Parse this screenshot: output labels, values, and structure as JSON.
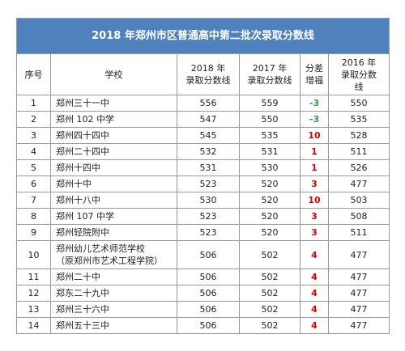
{
  "table": {
    "title": "2018 年郑州市区普通高中第二批次录取分数线",
    "headers": [
      "序号",
      "学校",
      "2018 年\n录取分数线",
      "2017 年\n录取分数线",
      "分差\n增福",
      "2016 年\n录取分数\n线"
    ],
    "rows": [
      [
        1,
        "郑州三十一中",
        556,
        559,
        -3,
        550
      ],
      [
        2,
        "郑州 102 中学",
        547,
        550,
        -3,
        535
      ],
      [
        3,
        "郑州四十四中",
        545,
        535,
        10,
        528
      ],
      [
        4,
        "郑州二十四中",
        532,
        531,
        1,
        511
      ],
      [
        5,
        "郑州十四中",
        531,
        530,
        1,
        526
      ],
      [
        6,
        "郑州十中",
        523,
        520,
        3,
        477
      ],
      [
        7,
        "郑州十八中",
        530,
        520,
        10,
        503
      ],
      [
        8,
        "郑州 107 中学",
        523,
        520,
        3,
        508
      ],
      [
        9,
        "郑州轻院附中",
        523,
        520,
        3,
        511
      ],
      [
        10,
        "郑州幼儿艺术师范学校\n（原郑州市艺术工程学院）",
        506,
        502,
        4,
        477
      ],
      [
        11,
        "郑州二十中",
        506,
        502,
        4,
        477
      ],
      [
        12,
        "郑东二十九中",
        506,
        502,
        4,
        477
      ],
      [
        13,
        "郑州三十六中",
        506,
        502,
        4,
        477
      ],
      [
        14,
        "郑州五十三中",
        506,
        502,
        4,
        477
      ]
    ]
  }
}
